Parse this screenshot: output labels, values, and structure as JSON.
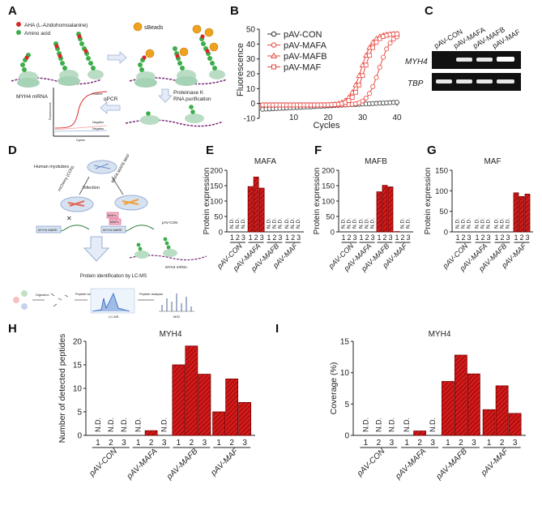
{
  "panel_labels": {
    "a": "A",
    "b": "B",
    "c": "C",
    "d": "D",
    "e": "E",
    "f": "F",
    "g": "G",
    "h": "H",
    "i": "I"
  },
  "panel_a": {
    "legend_aha": "AHA (L-Azidohomoalanine)",
    "legend_aa": "Amino acid",
    "sbeads": "sBeads",
    "mrna": "MYH4 mRNA",
    "proteinase": "Proteinase K",
    "rna_purification": "RNA purification",
    "qpcr": "qPCR",
    "inset_line1": "Positive",
    "inset_line2": "Negative",
    "inset_line3": "Negative",
    "inset_xlabel": "Cycles",
    "inset_ylabel": "Fluorescence"
  },
  "panel_c": {
    "lanes": [
      "pAV-CON",
      "pAV-MAFA",
      "pAV-MAFB",
      "pAV-MAF"
    ],
    "row1": "MYH4",
    "row2": "TBP"
  },
  "panel_d": {
    "human_myotubes": "Human myotubes",
    "control": "mCherry (CON)",
    "treatments": "MAFA MAFB MAF",
    "infection": "Infection",
    "mafs": "MAFs",
    "mafs_tag": "MAFs",
    "mare1": "MYH4 MARE",
    "mare2": "MYH4 MARE",
    "con_label": "pAV-CON",
    "mrna_label": "MYH4 mRNA",
    "protein_id": "Protein identification by LC-MS",
    "digestion": "Digestion",
    "peptide": "Peptide separation",
    "peptide_analysis": "Peptide analysis",
    "lcms": "LC-MS",
    "ms2": "MS2"
  },
  "chart_data": [
    {
      "id": "B",
      "type": "line",
      "title": "",
      "xlabel": "Cycles",
      "ylabel": "Fluorescence",
      "xlim": [
        0,
        40
      ],
      "ylim": [
        -10,
        50
      ],
      "xticks": [
        10,
        20,
        30,
        40
      ],
      "yticks": [
        -10,
        0,
        10,
        20,
        30,
        40,
        50
      ],
      "series": [
        {
          "name": "pAV-CON",
          "marker": "circle",
          "color": "#333333",
          "mid": 55,
          "plateau": 0,
          "start": -4,
          "xmax": 40
        },
        {
          "name": "pAV-MAFA",
          "marker": "circle",
          "color": "#e8453c",
          "mid": 34.8,
          "plateau": 47,
          "start": -1,
          "xmax": 40
        },
        {
          "name": "pAV-MAFB",
          "marker": "triangle",
          "color": "#e8453c",
          "mid": 29.6,
          "plateau": 47,
          "start": -1,
          "xmax": 40
        },
        {
          "name": "pAV-MAF",
          "marker": "square",
          "color": "#e8453c",
          "mid": 30.6,
          "plateau": 47,
          "start": -1,
          "xmax": 40
        }
      ]
    },
    {
      "id": "E",
      "type": "bar",
      "title": "MAFA",
      "ylabel": "Protein expression",
      "ylim": [
        0,
        200
      ],
      "yticks": [
        0,
        50,
        100,
        150,
        200
      ],
      "groups": [
        "pAV-CON",
        "pAV-MAFA",
        "pAV-MAFB",
        "pAV-MAF"
      ],
      "reps": [
        "1",
        "2",
        "3"
      ],
      "values": [
        [
          null,
          null,
          null
        ],
        [
          147,
          178,
          142
        ],
        [
          null,
          null,
          null
        ],
        [
          null,
          null,
          null
        ]
      ],
      "nd_label": "N.D."
    },
    {
      "id": "F",
      "type": "bar",
      "title": "MAFB",
      "ylabel": "Protein expression",
      "ylim": [
        0,
        200
      ],
      "yticks": [
        0,
        50,
        100,
        150,
        200
      ],
      "groups": [
        "pAV-CON",
        "pAV-MAFA",
        "pAV-MAFB",
        "pAV-MAF"
      ],
      "reps": [
        "1",
        "2",
        "3"
      ],
      "values": [
        [
          null,
          null,
          null
        ],
        [
          null,
          null,
          null
        ],
        [
          130,
          151,
          146
        ],
        [
          1,
          null,
          null
        ]
      ],
      "nd_label": "N.D."
    },
    {
      "id": "G",
      "type": "bar",
      "title": "MAF",
      "ylabel": "Protein expression",
      "ylim": [
        0,
        150
      ],
      "yticks": [
        0,
        50,
        100,
        150
      ],
      "groups": [
        "pAV-CON",
        "pAV-MAFA",
        "pAV-MAFB",
        "pAV-MAF"
      ],
      "reps": [
        "1",
        "2",
        "3"
      ],
      "values": [
        [
          null,
          null,
          null
        ],
        [
          null,
          null,
          null
        ],
        [
          null,
          null,
          null
        ],
        [
          95,
          86,
          92
        ]
      ],
      "nd_label": "N.D."
    },
    {
      "id": "H",
      "type": "bar",
      "title": "MYH4",
      "ylabel": "Number of detected peptides",
      "ylim": [
        0,
        20
      ],
      "yticks": [
        0,
        5,
        10,
        15,
        20
      ],
      "groups": [
        "pAV-CON",
        "pAV-MAFA",
        "pAV-MAFB",
        "pAV-MAF"
      ],
      "reps": [
        "1",
        "2",
        "3"
      ],
      "values": [
        [
          null,
          null,
          null
        ],
        [
          null,
          1,
          null
        ],
        [
          15,
          19,
          13
        ],
        [
          5,
          12,
          7
        ]
      ],
      "nd_label": "N.D."
    },
    {
      "id": "I",
      "type": "bar",
      "title": "MYH4",
      "ylabel": "Coverage (%)",
      "ylim": [
        0,
        15
      ],
      "yticks": [
        0,
        5,
        10,
        15
      ],
      "groups": [
        "pAV-CON",
        "pAV-MAFA",
        "pAV-MAFB",
        "pAV-MAF"
      ],
      "reps": [
        "1",
        "2",
        "3"
      ],
      "values": [
        [
          null,
          null,
          null
        ],
        [
          null,
          0.7,
          null
        ],
        [
          8.6,
          12.8,
          9.8
        ],
        [
          4.1,
          7.9,
          3.5
        ]
      ],
      "nd_label": "N.D."
    }
  ]
}
